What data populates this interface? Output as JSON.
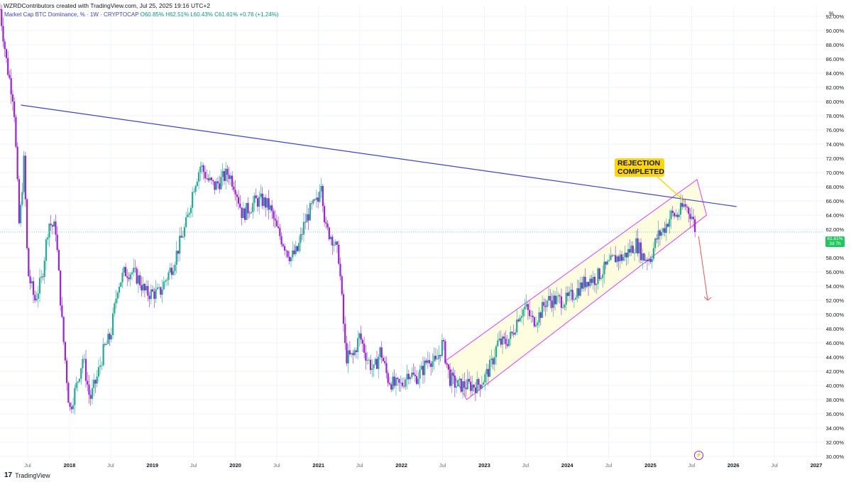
{
  "header": {
    "credit": "WZRDContributors created with TradingView.com, Jul 25, 2025 19:16 UTC+2",
    "symbol": "Market Cap BTC Dominance, % · 1W · CRYPTOCAP",
    "ohlc": "O60.85% H62.51% L60.43% C61.61% +0.76 (+1.24%)",
    "unit": "%"
  },
  "current_price": {
    "value": "61.61%",
    "countdown": "2d 7h"
  },
  "annotation": {
    "line1": "REJECTION",
    "line2": "COMPLETED"
  },
  "brand": {
    "logo": "17",
    "name": "TradingView"
  },
  "colors": {
    "up": "#22ab94",
    "down": "#9c1fe0",
    "trendline": "#3c46c8",
    "channel": "#e040fb",
    "channel_fill": "#fffde0",
    "arrow": "#f05454",
    "callout": "#ffd600"
  },
  "chart_data": {
    "type": "candlestick",
    "title": "Market Cap BTC Dominance",
    "ylabel": "%",
    "y_axis_side": "right",
    "ylim": [
      29.5,
      93.5
    ],
    "y_ticks": [
      "30.00%",
      "32.00%",
      "34.00%",
      "36.00%",
      "38.00%",
      "40.00%",
      "42.00%",
      "44.00%",
      "46.00%",
      "48.00%",
      "50.00%",
      "52.00%",
      "54.00%",
      "56.00%",
      "58.00%",
      "60.00%",
      "62.00%",
      "64.00%",
      "66.00%",
      "68.00%",
      "70.00%",
      "72.00%",
      "74.00%",
      "76.00%",
      "78.00%",
      "80.00%",
      "82.00%",
      "84.00%",
      "86.00%",
      "88.00%",
      "90.00%",
      "92.00%"
    ],
    "x_range": [
      "2017-03-01",
      "2027-02-01"
    ],
    "x_ticks": [
      {
        "label": "Jul",
        "date": "2017-07-01"
      },
      {
        "label": "2018",
        "date": "2018-01-01"
      },
      {
        "label": "Jul",
        "date": "2018-07-01"
      },
      {
        "label": "2019",
        "date": "2019-01-01"
      },
      {
        "label": "Jul",
        "date": "2019-07-01"
      },
      {
        "label": "2020",
        "date": "2020-01-01"
      },
      {
        "label": "Jul",
        "date": "2020-07-01"
      },
      {
        "label": "2021",
        "date": "2021-01-01"
      },
      {
        "label": "Jul",
        "date": "2021-07-01"
      },
      {
        "label": "2022",
        "date": "2022-01-01"
      },
      {
        "label": "Jul",
        "date": "2022-07-01"
      },
      {
        "label": "2023",
        "date": "2023-01-01"
      },
      {
        "label": "Jul",
        "date": "2023-07-01"
      },
      {
        "label": "2024",
        "date": "2024-01-01"
      },
      {
        "label": "Jul",
        "date": "2024-07-01"
      },
      {
        "label": "2025",
        "date": "2025-01-01"
      },
      {
        "label": "Jul",
        "date": "2025-07-01"
      },
      {
        "label": "2026",
        "date": "2026-01-01"
      },
      {
        "label": "Jul",
        "date": "2026-07-01"
      },
      {
        "label": "2027",
        "date": "2027-01-01"
      }
    ],
    "closes_path": [
      [
        "2017-03-01",
        93
      ],
      [
        "2017-04-01",
        85
      ],
      [
        "2017-05-01",
        80
      ],
      [
        "2017-05-25",
        62
      ],
      [
        "2017-06-15",
        72
      ],
      [
        "2017-07-01",
        56
      ],
      [
        "2017-08-01",
        52
      ],
      [
        "2017-09-01",
        55
      ],
      [
        "2017-10-01",
        63
      ],
      [
        "2017-11-01",
        62
      ],
      [
        "2017-12-01",
        48
      ],
      [
        "2018-01-01",
        36.5
      ],
      [
        "2018-02-01",
        40
      ],
      [
        "2018-03-01",
        44
      ],
      [
        "2018-04-01",
        38
      ],
      [
        "2018-05-01",
        41
      ],
      [
        "2018-06-01",
        45
      ],
      [
        "2018-07-01",
        47
      ],
      [
        "2018-08-01",
        54
      ],
      [
        "2018-09-01",
        56
      ],
      [
        "2018-10-01",
        56
      ],
      [
        "2018-11-01",
        55
      ],
      [
        "2018-12-01",
        53
      ],
      [
        "2019-01-01",
        53
      ],
      [
        "2019-02-01",
        53
      ],
      [
        "2019-03-01",
        55
      ],
      [
        "2019-04-01",
        57
      ],
      [
        "2019-05-01",
        60
      ],
      [
        "2019-06-01",
        63
      ],
      [
        "2019-07-01",
        68
      ],
      [
        "2019-08-01",
        71
      ],
      [
        "2019-09-01",
        69
      ],
      [
        "2019-10-01",
        68
      ],
      [
        "2019-11-01",
        69
      ],
      [
        "2019-12-01",
        70
      ],
      [
        "2020-01-01",
        68
      ],
      [
        "2020-02-01",
        64
      ],
      [
        "2020-03-01",
        65
      ],
      [
        "2020-04-01",
        66
      ],
      [
        "2020-05-01",
        66
      ],
      [
        "2020-06-01",
        65
      ],
      [
        "2020-07-01",
        62
      ],
      [
        "2020-08-01",
        60
      ],
      [
        "2020-09-01",
        58
      ],
      [
        "2020-10-01",
        59
      ],
      [
        "2020-11-01",
        63
      ],
      [
        "2020-12-01",
        65
      ],
      [
        "2021-01-01",
        66
      ],
      [
        "2021-01-10",
        70
      ],
      [
        "2021-02-01",
        62
      ],
      [
        "2021-03-01",
        61
      ],
      [
        "2021-04-01",
        58
      ],
      [
        "2021-05-01",
        44
      ],
      [
        "2021-06-01",
        44
      ],
      [
        "2021-07-01",
        47
      ],
      [
        "2021-08-01",
        44
      ],
      [
        "2021-09-01",
        42
      ],
      [
        "2021-10-01",
        45
      ],
      [
        "2021-11-01",
        41
      ],
      [
        "2021-12-01",
        40
      ],
      [
        "2022-01-01",
        40
      ],
      [
        "2022-02-01",
        42
      ],
      [
        "2022-03-01",
        41
      ],
      [
        "2022-04-01",
        42
      ],
      [
        "2022-05-01",
        44
      ],
      [
        "2022-06-01",
        43
      ],
      [
        "2022-07-01",
        46
      ],
      [
        "2022-08-01",
        41
      ],
      [
        "2022-09-01",
        40
      ],
      [
        "2022-10-01",
        40
      ],
      [
        "2022-11-01",
        40
      ],
      [
        "2022-12-01",
        40
      ],
      [
        "2023-01-01",
        41
      ],
      [
        "2023-02-01",
        43
      ],
      [
        "2023-03-01",
        46
      ],
      [
        "2023-04-01",
        46
      ],
      [
        "2023-05-01",
        47
      ],
      [
        "2023-06-01",
        50
      ],
      [
        "2023-07-01",
        51
      ],
      [
        "2023-08-01",
        49
      ],
      [
        "2023-09-01",
        50
      ],
      [
        "2023-10-01",
        52
      ],
      [
        "2023-11-01",
        52
      ],
      [
        "2023-12-01",
        52
      ],
      [
        "2024-01-01",
        52
      ],
      [
        "2024-02-01",
        53
      ],
      [
        "2024-03-01",
        54
      ],
      [
        "2024-04-01",
        55
      ],
      [
        "2024-05-01",
        55
      ],
      [
        "2024-06-01",
        56
      ],
      [
        "2024-07-01",
        57
      ],
      [
        "2024-08-01",
        58
      ],
      [
        "2024-09-01",
        58
      ],
      [
        "2024-10-01",
        59
      ],
      [
        "2024-11-01",
        60
      ],
      [
        "2024-12-01",
        58
      ],
      [
        "2025-01-01",
        58
      ],
      [
        "2025-02-01",
        61
      ],
      [
        "2025-03-01",
        62
      ],
      [
        "2025-04-01",
        64
      ],
      [
        "2025-05-01",
        64
      ],
      [
        "2025-06-01",
        65.5
      ],
      [
        "2025-07-01",
        64
      ],
      [
        "2025-07-20",
        61.6
      ]
    ],
    "last_close": 61.61,
    "trendline": [
      [
        "2017-06-01",
        79.5
      ],
      [
        "2026-01-15",
        65.2
      ]
    ],
    "channel": [
      [
        "2022-07-15",
        43.5
      ],
      [
        "2025-07-25",
        69
      ],
      [
        "2025-09-05",
        64
      ],
      [
        "2022-10-15",
        38
      ]
    ],
    "projection_arrow": [
      [
        "2025-08-01",
        61
      ],
      [
        "2025-09-10",
        52
      ]
    ]
  }
}
